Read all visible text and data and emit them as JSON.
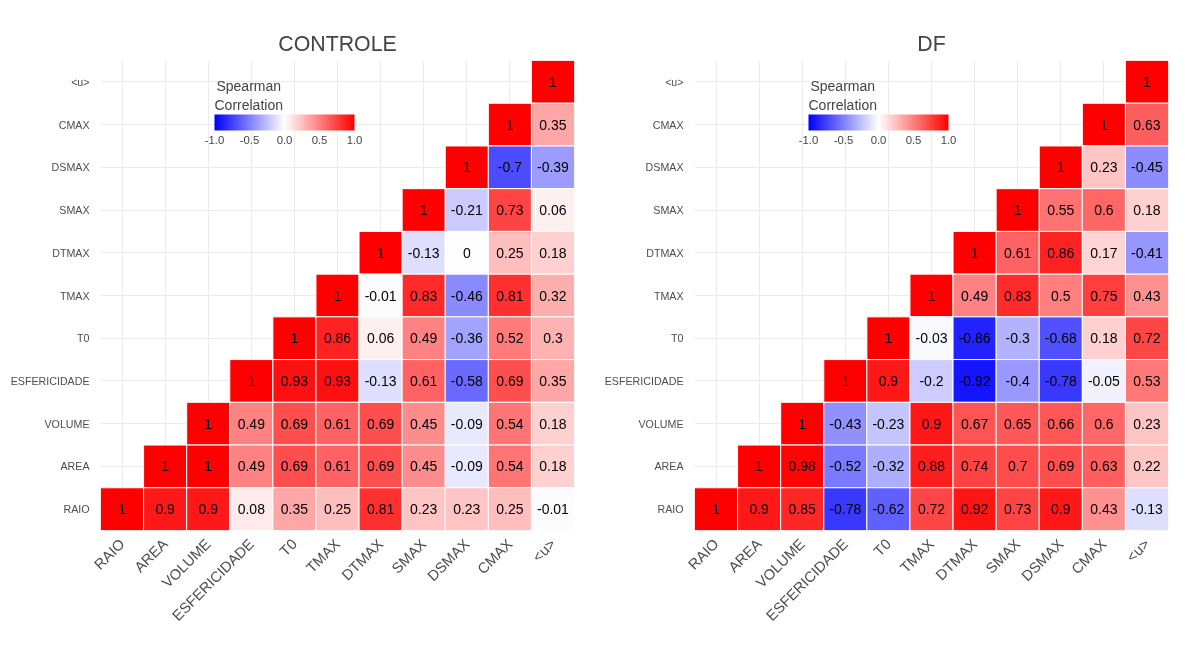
{
  "chart_data": [
    {
      "type": "heatmap",
      "title": "CONTROLE",
      "clabel": "Spearman\nCorrelation",
      "clim": [
        -1,
        1
      ],
      "cticks": [
        {
          "value": -1,
          "label": "-1.0"
        },
        {
          "value": -0.5,
          "label": "-0.5"
        },
        {
          "value": 0,
          "label": "0.0"
        },
        {
          "value": 0.5,
          "label": "0.5"
        },
        {
          "value": 1,
          "label": "1.0"
        }
      ],
      "grid": true,
      "data_labels": true,
      "categories": [
        "RAIO",
        "AREA",
        "VOLUME",
        "ESFERICIDADE",
        "T0",
        "TMAX",
        "DTMAX",
        "SMAX",
        "DSMAX",
        "CMAX",
        "<u>"
      ],
      "y_categories": [
        "<u>",
        "CMAX",
        "DSMAX",
        "SMAX",
        "DTMAX",
        "TMAX",
        "T0",
        "ESFERICIDADE",
        "VOLUME",
        "AREA",
        "RAIO"
      ],
      "cells": [
        [
          null,
          null,
          null,
          null,
          null,
          null,
          null,
          null,
          null,
          null,
          1
        ],
        [
          null,
          null,
          null,
          null,
          null,
          null,
          null,
          null,
          null,
          1,
          0.35
        ],
        [
          null,
          null,
          null,
          null,
          null,
          null,
          null,
          null,
          1,
          -0.7,
          -0.39
        ],
        [
          null,
          null,
          null,
          null,
          null,
          null,
          null,
          1,
          -0.21,
          0.73,
          0.06
        ],
        [
          null,
          null,
          null,
          null,
          null,
          null,
          1,
          -0.13,
          0,
          0.25,
          0.18
        ],
        [
          null,
          null,
          null,
          null,
          null,
          1,
          -0.01,
          0.83,
          -0.46,
          0.81,
          0.32
        ],
        [
          null,
          null,
          null,
          null,
          1,
          0.86,
          0.06,
          0.49,
          -0.36,
          0.52,
          0.3
        ],
        [
          null,
          null,
          null,
          1,
          0.93,
          0.93,
          -0.13,
          0.61,
          -0.58,
          0.69,
          0.35
        ],
        [
          null,
          null,
          1,
          0.49,
          0.69,
          0.61,
          0.69,
          0.45,
          -0.09,
          0.54,
          0.18
        ],
        [
          null,
          1,
          1,
          0.49,
          0.69,
          0.61,
          0.69,
          0.45,
          -0.09,
          0.54,
          0.18
        ],
        [
          1,
          0.9,
          0.9,
          0.08,
          0.35,
          0.25,
          0.81,
          0.23,
          0.23,
          0.25,
          -0.01
        ]
      ]
    },
    {
      "type": "heatmap",
      "title": "DF",
      "clabel": "Spearman\nCorrelation",
      "clim": [
        -1,
        1
      ],
      "cticks": [
        {
          "value": -1,
          "label": "-1.0"
        },
        {
          "value": -0.5,
          "label": "-0.5"
        },
        {
          "value": 0,
          "label": "0.0"
        },
        {
          "value": 0.5,
          "label": "0.5"
        },
        {
          "value": 1,
          "label": "1.0"
        }
      ],
      "grid": true,
      "data_labels": true,
      "categories": [
        "RAIO",
        "AREA",
        "VOLUME",
        "ESFERICIDADE",
        "T0",
        "TMAX",
        "DTMAX",
        "SMAX",
        "DSMAX",
        "CMAX",
        "<u>"
      ],
      "y_categories": [
        "<u>",
        "CMAX",
        "DSMAX",
        "SMAX",
        "DTMAX",
        "TMAX",
        "T0",
        "ESFERICIDADE",
        "VOLUME",
        "AREA",
        "RAIO"
      ],
      "cells": [
        [
          null,
          null,
          null,
          null,
          null,
          null,
          null,
          null,
          null,
          null,
          1
        ],
        [
          null,
          null,
          null,
          null,
          null,
          null,
          null,
          null,
          null,
          1,
          0.63
        ],
        [
          null,
          null,
          null,
          null,
          null,
          null,
          null,
          null,
          1,
          0.23,
          -0.45
        ],
        [
          null,
          null,
          null,
          null,
          null,
          null,
          null,
          1,
          0.55,
          0.6,
          0.18
        ],
        [
          null,
          null,
          null,
          null,
          null,
          null,
          1,
          0.61,
          0.86,
          0.17,
          -0.41
        ],
        [
          null,
          null,
          null,
          null,
          null,
          1,
          0.49,
          0.83,
          0.5,
          0.75,
          0.43
        ],
        [
          null,
          null,
          null,
          null,
          1,
          -0.03,
          -0.86,
          -0.3,
          -0.68,
          0.18,
          0.72
        ],
        [
          null,
          null,
          null,
          1,
          0.9,
          -0.2,
          -0.92,
          -0.4,
          -0.78,
          -0.05,
          0.53
        ],
        [
          null,
          null,
          1,
          -0.43,
          -0.23,
          0.9,
          0.67,
          0.65,
          0.66,
          0.6,
          0.23
        ],
        [
          null,
          1,
          0.98,
          -0.52,
          -0.32,
          0.88,
          0.74,
          0.7,
          0.69,
          0.63,
          0.22
        ],
        [
          1,
          0.9,
          0.85,
          -0.78,
          -0.62,
          0.72,
          0.92,
          0.73,
          0.9,
          0.43,
          -0.13
        ]
      ]
    }
  ]
}
